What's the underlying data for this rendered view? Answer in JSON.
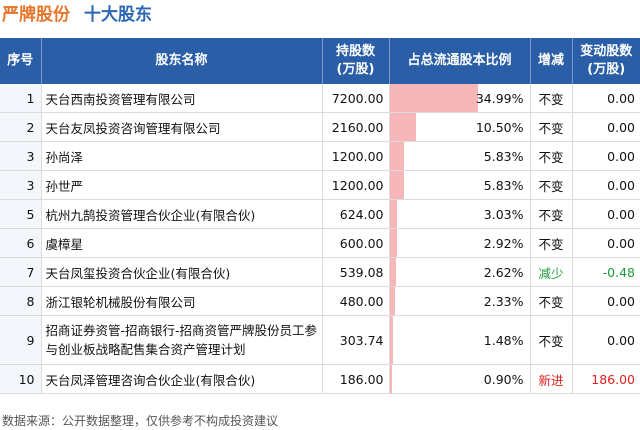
{
  "title": {
    "brand": "严牌股份",
    "sub": "十大股东"
  },
  "headers": {
    "no": "序号",
    "name": "股东名称",
    "shares_line1": "持股数",
    "shares_line2": "(万股)",
    "ratio": "占总流通股本比例",
    "change": "增减",
    "delta_line1": "变动股数",
    "delta_line2": "(万股)"
  },
  "chart_data": {
    "type": "table",
    "ratio_bar_max": 34.99,
    "rows": [
      {
        "no": "1",
        "name": "天台西南投资管理有限公司",
        "shares": "7200.00",
        "ratio": "34.99%",
        "ratio_value": 34.99,
        "change": "不变",
        "delta": "0.00",
        "status": "same"
      },
      {
        "no": "2",
        "name": "天台友凤投资咨询管理有限公司",
        "shares": "2160.00",
        "ratio": "10.50%",
        "ratio_value": 10.5,
        "change": "不变",
        "delta": "0.00",
        "status": "same"
      },
      {
        "no": "3",
        "name": "孙尚泽",
        "shares": "1200.00",
        "ratio": "5.83%",
        "ratio_value": 5.83,
        "change": "不变",
        "delta": "0.00",
        "status": "same"
      },
      {
        "no": "3",
        "name": "孙世严",
        "shares": "1200.00",
        "ratio": "5.83%",
        "ratio_value": 5.83,
        "change": "不变",
        "delta": "0.00",
        "status": "same"
      },
      {
        "no": "5",
        "name": "杭州九鹄投资管理合伙企业(有限合伙)",
        "shares": "624.00",
        "ratio": "3.03%",
        "ratio_value": 3.03,
        "change": "不变",
        "delta": "0.00",
        "status": "same"
      },
      {
        "no": "6",
        "name": "虞樟星",
        "shares": "600.00",
        "ratio": "2.92%",
        "ratio_value": 2.92,
        "change": "不变",
        "delta": "0.00",
        "status": "same"
      },
      {
        "no": "7",
        "name": "天台凤玺投资合伙企业(有限合伙)",
        "shares": "539.08",
        "ratio": "2.62%",
        "ratio_value": 2.62,
        "change": "减少",
        "delta": "-0.48",
        "status": "down"
      },
      {
        "no": "8",
        "name": "浙江银轮机械股份有限公司",
        "shares": "480.00",
        "ratio": "2.33%",
        "ratio_value": 2.33,
        "change": "不变",
        "delta": "0.00",
        "status": "same"
      },
      {
        "no": "9",
        "name": "招商证券资管-招商银行-招商资管严牌股份员工参与创业板战略配售集合资产管理计划",
        "shares": "303.74",
        "ratio": "1.48%",
        "ratio_value": 1.48,
        "change": "不变",
        "delta": "0.00",
        "status": "same",
        "tall": true
      },
      {
        "no": "10",
        "name": "天台凤泽管理咨询合伙企业(有限合伙)",
        "shares": "186.00",
        "ratio": "0.90%",
        "ratio_value": 0.9,
        "change": "新进",
        "delta": "186.00",
        "status": "up"
      }
    ]
  },
  "footer": "数据来源：公开数据整理，仅供参考不构成投资建议",
  "colors": {
    "brand": "#e8742a",
    "sub": "#2b66b3",
    "header_bg": "#2a5ea7",
    "bar": "#f7b6b8",
    "down": "#1f9a3a",
    "up": "#e02020"
  }
}
